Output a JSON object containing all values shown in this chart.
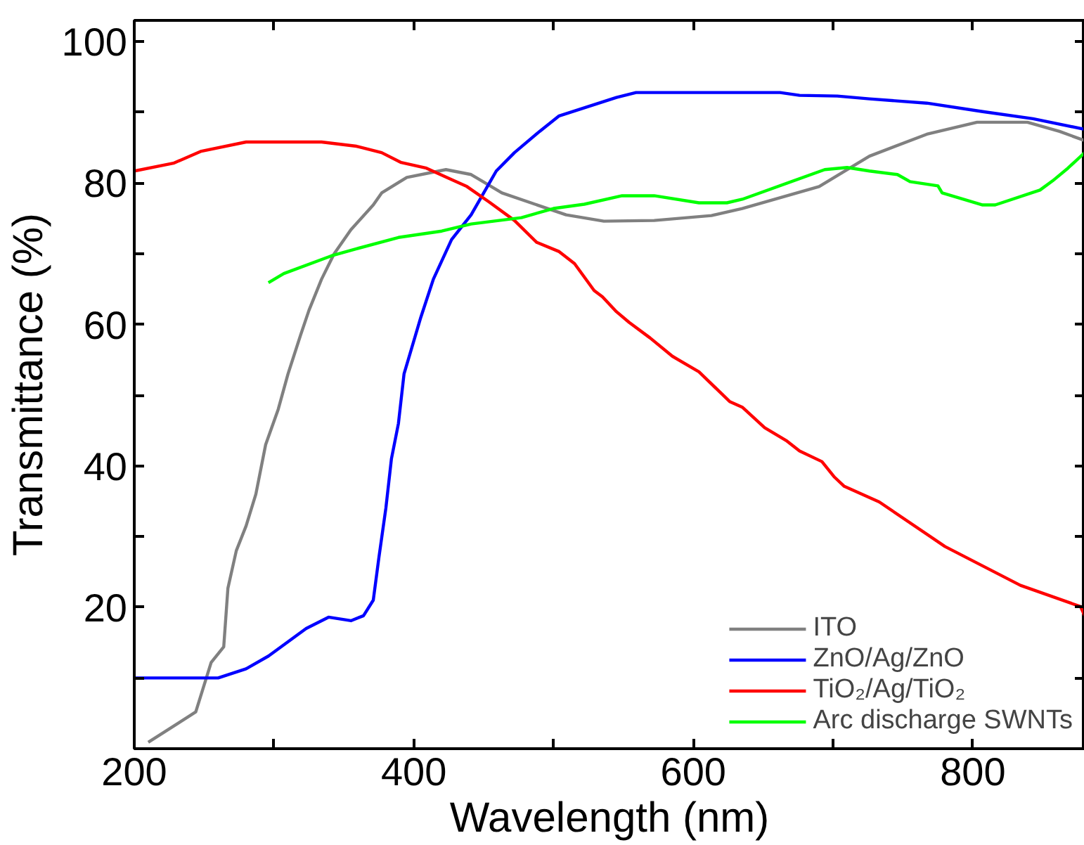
{
  "chart_data": {
    "type": "line",
    "xlabel": "Wavelength (nm)",
    "ylabel": "Transmittance (%)",
    "xlim": [
      200,
      880
    ],
    "ylim": [
      0,
      103
    ],
    "xticks": [
      200,
      {
        "value": 300,
        "label": null
      },
      400,
      {
        "value": 500,
        "label": null
      },
      600,
      {
        "value": 700,
        "label": null
      },
      800
    ],
    "yticks": [
      {
        "value": 10,
        "label": null
      },
      20,
      {
        "value": 30,
        "label": null
      },
      40,
      {
        "value": 50,
        "label": null
      },
      60,
      {
        "value": 70,
        "label": null
      },
      80,
      {
        "value": 90,
        "label": null
      },
      100
    ],
    "grid": false,
    "legend": "bottom right",
    "marker": "none",
    "line_style": "solid",
    "series": [
      {
        "name": "ITO",
        "color": "#808080",
        "x": [
          210,
          244,
          255,
          264,
          267,
          273,
          280,
          287,
          294,
          303,
          310,
          319,
          325,
          334,
          343,
          355,
          371,
          377,
          395,
          423,
          441,
          463,
          509,
          536,
          572,
          613,
          635,
          690,
          726,
          767,
          803,
          839,
          862,
          880
        ],
        "values": [
          0.9,
          5.2,
          12.2,
          14.4,
          22.7,
          28,
          31.5,
          36,
          43,
          48,
          53,
          58.5,
          62,
          66.4,
          70,
          73.4,
          76.9,
          78.6,
          80.8,
          81.9,
          81.2,
          78.6,
          75.5,
          74.6,
          74.7,
          75.4,
          76.4,
          79.5,
          83.8,
          86.9,
          88.6,
          88.6,
          87.3,
          86
        ]
      },
      {
        "name": "ZnO/Ag/ZnO",
        "color": "#0000ff",
        "x": [
          200,
          260,
          280,
          296,
          323,
          339,
          355,
          364,
          371,
          375,
          380,
          384,
          389,
          393,
          405,
          414,
          427,
          441,
          459,
          472,
          490,
          504,
          545,
          559,
          662,
          676,
          703,
          726,
          767,
          807,
          843,
          880
        ],
        "values": [
          10,
          10,
          11.3,
          13.1,
          17,
          18.6,
          18.1,
          18.8,
          21,
          27,
          34,
          41,
          46,
          53,
          61,
          66.4,
          72,
          75.5,
          81.7,
          84.3,
          87.3,
          89.5,
          92.1,
          92.8,
          92.8,
          92.4,
          92.3,
          91.9,
          91.3,
          90.1,
          89.1,
          87.6
        ]
      },
      {
        "name": "TiO₂/Ag/TiO₂",
        "color": "#ff0000",
        "x": [
          200,
          228,
          248,
          280,
          334,
          359,
          377,
          391,
          409,
          438,
          454,
          472,
          488,
          504,
          515,
          529,
          535,
          545,
          554,
          569,
          585,
          604,
          626,
          635,
          651,
          667,
          676,
          692,
          701,
          708,
          733,
          780,
          834,
          877,
          880
        ],
        "values": [
          81.7,
          82.8,
          84.5,
          85.8,
          85.8,
          85.2,
          84.3,
          82.9,
          82.1,
          79.5,
          77.3,
          74.7,
          71.6,
          70.3,
          68.6,
          64.8,
          63.9,
          61.8,
          60.3,
          58.1,
          55.5,
          53.3,
          49.1,
          48.3,
          45.4,
          43.5,
          42.1,
          40.6,
          38.4,
          37.1,
          34.9,
          28.6,
          23.1,
          20.1,
          18.8
        ]
      },
      {
        "name": "Arc discharge SWNTs",
        "color": "#00ff00",
        "x": [
          296,
          307,
          341,
          359,
          389,
          420,
          441,
          477,
          500,
          522,
          549,
          572,
          604,
          624,
          635,
          694,
          710,
          726,
          746,
          755,
          775,
          778,
          807,
          816,
          848,
          857,
          868,
          880
        ],
        "values": [
          65.9,
          67.2,
          69.7,
          70.7,
          72.3,
          73.2,
          74.2,
          75.1,
          76.4,
          77,
          78.2,
          78.2,
          77.2,
          77.2,
          77.7,
          81.9,
          82.2,
          81.7,
          81.2,
          80.2,
          79.6,
          78.6,
          76.9,
          76.9,
          79,
          80.3,
          82.1,
          84.3
        ]
      }
    ]
  }
}
